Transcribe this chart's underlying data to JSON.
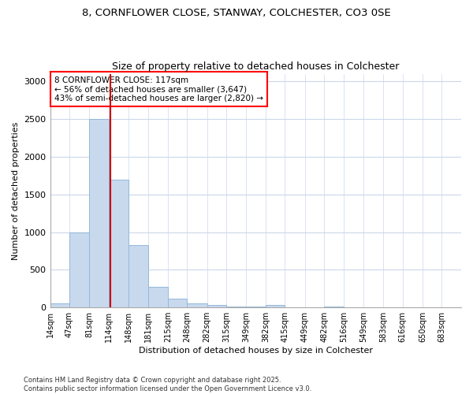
{
  "title1": "8, CORNFLOWER CLOSE, STANWAY, COLCHESTER, CO3 0SE",
  "title2": "Size of property relative to detached houses in Colchester",
  "xlabel": "Distribution of detached houses by size in Colchester",
  "ylabel": "Number of detached properties",
  "bar_edges": [
    14,
    47,
    81,
    114,
    148,
    181,
    215,
    248,
    282,
    315,
    349,
    382,
    415,
    449,
    482,
    516,
    549,
    583,
    616,
    650,
    683
  ],
  "bar_heights": [
    50,
    1000,
    2500,
    1700,
    830,
    270,
    115,
    50,
    30,
    15,
    8,
    30,
    5,
    3,
    15,
    2,
    1,
    0,
    0,
    1
  ],
  "bar_color": "#c8d9ee",
  "bar_edge_color": "#94b8d8",
  "property_size": 117,
  "annotation_title": "8 CORNFLOWER CLOSE: 117sqm",
  "annotation_line1": "← 56% of detached houses are smaller (3,647)",
  "annotation_line2": "43% of semi-detached houses are larger (2,820) →",
  "vline_color": "#cc0000",
  "ylim": [
    0,
    3100
  ],
  "yticks": [
    0,
    500,
    1000,
    1500,
    2000,
    2500,
    3000
  ],
  "grid_color": "#ccd8ea",
  "bg_color": "#ffffff",
  "fig_bg_color": "#ffffff",
  "footnote1": "Contains HM Land Registry data © Crown copyright and database right 2025.",
  "footnote2": "Contains public sector information licensed under the Open Government Licence v3.0."
}
